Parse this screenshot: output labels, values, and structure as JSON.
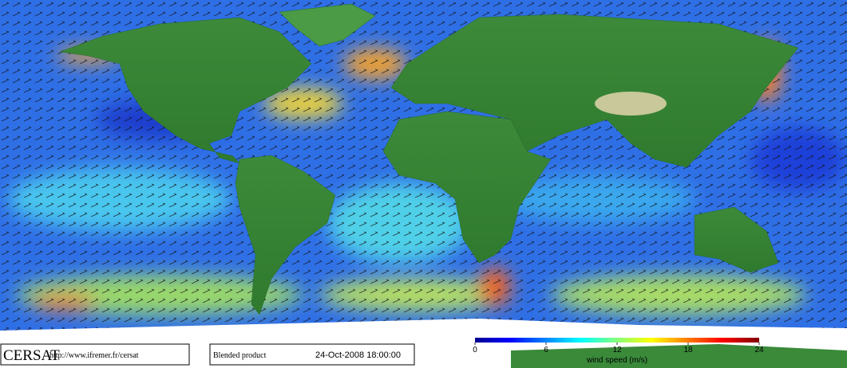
{
  "footer": {
    "logo": "CERSAT",
    "url": "http://www.ifremer.fr/cersat",
    "product": "Blended product",
    "datetime": "24-Oct-2008 18:00:00"
  },
  "colorbar": {
    "label": "wind speed (m/s)",
    "lim": [
      0,
      24
    ],
    "ticks": [
      0,
      6,
      12,
      18,
      24
    ]
  }
}
